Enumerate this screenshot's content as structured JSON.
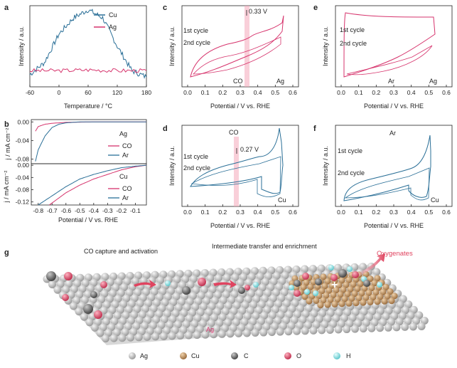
{
  "panels": {
    "a": {
      "label": "a",
      "xlabel": "Temperature / °C",
      "ylabel": "Intensity / a.u.",
      "xticks": [
        "-60",
        "0",
        "60",
        "120",
        "180"
      ],
      "legend": [
        {
          "name": "Cu",
          "color": "#2a6f97"
        },
        {
          "name": "Ag",
          "color": "#d6336c"
        }
      ]
    },
    "b": {
      "label": "b",
      "xlabel": "Potential / V vs. RHE",
      "xticks": [
        "-0.8",
        "-0.7",
        "-0.6",
        "-0.5",
        "-0.4",
        "-0.3",
        "-0.2",
        "-0.1"
      ],
      "top": {
        "ylabel": "j / mA cm⁻²",
        "yticks": [
          "0.00",
          "-0.04",
          "-0.08"
        ],
        "metal": "Ag",
        "legend": [
          {
            "name": "CO",
            "color": "#d6336c"
          },
          {
            "name": "Ar",
            "color": "#2a6f97"
          }
        ]
      },
      "bottom": {
        "ylabel": "j / mA cm⁻²",
        "yticks": [
          "0.00",
          "-0.04",
          "-0.08",
          "-0.12"
        ],
        "metal": "Cu",
        "legend": [
          {
            "name": "CO",
            "color": "#d6336c"
          },
          {
            "name": "Ar",
            "color": "#2a6f97"
          }
        ]
      }
    },
    "c": {
      "label": "c",
      "peak": "0.33 V",
      "c1": "1st cycle",
      "c2": "2nd cycle",
      "gas": "CO",
      "metal": "Ag",
      "xlabel": "Potential / V vs. RHE",
      "ylabel": "Intensity / a.u."
    },
    "d": {
      "label": "d",
      "peak": "0.27 V",
      "c1": "1st cycle",
      "c2": "2nd cycle",
      "gas": "CO",
      "metal": "Cu",
      "xlabel": "Potential / V vs. RHE",
      "ylabel": "Intensity / a.u."
    },
    "e": {
      "label": "e",
      "c1": "1st cycle",
      "c2": "2nd cycle",
      "gas": "Ar",
      "metal": "Ag",
      "xlabel": "Potential / V vs. RHE",
      "ylabel": "Intensity / a.u."
    },
    "f": {
      "label": "f",
      "c1": "1st cycle",
      "c2": "2nd cycle",
      "gas": "Ar",
      "metal": "Cu",
      "xlabel": "Potential / V vs. RHE",
      "ylabel": "Intensity / a.u."
    },
    "cv_xticks": [
      "0.0",
      "0.1",
      "0.2",
      "0.3",
      "0.4",
      "0.5",
      "0.6"
    ],
    "g": {
      "label": "g",
      "step1": "CO capture and activation",
      "step2": "Intermediate transfer and enrichment",
      "product": "Oxygenates",
      "surface": "Ag",
      "legend": [
        "Ag",
        "Cu",
        "C",
        "O",
        "H"
      ],
      "colors": {
        "Ag": "#c9c9c9",
        "Cu": "#c49a6c",
        "C": "#7a7a7a",
        "O": "#e05070",
        "H": "#8fdde0"
      }
    }
  },
  "chart_data": [
    {
      "type": "line",
      "panel": "a",
      "xlabel": "Temperature / °C",
      "ylabel": "Intensity / a.u.",
      "xlim": [
        -60,
        180
      ],
      "series": [
        {
          "name": "Cu",
          "x": [
            -60,
            -30,
            0,
            30,
            60,
            90,
            120,
            150,
            180
          ],
          "y": [
            0.15,
            0.3,
            0.65,
            0.85,
            0.95,
            0.85,
            0.5,
            0.2,
            0.12
          ]
        },
        {
          "name": "Ag",
          "x": [
            -60,
            0,
            60,
            120,
            180
          ],
          "y": [
            0.2,
            0.2,
            0.21,
            0.2,
            0.2
          ]
        }
      ]
    },
    {
      "type": "line",
      "panel": "b-top",
      "xlabel": "Potential / V vs. RHE",
      "ylabel": "j / mA cm⁻²",
      "xlim": [
        -0.85,
        -0.02
      ],
      "ylim": [
        -0.09,
        0.005
      ],
      "series": [
        {
          "name": "CO",
          "x": [
            -0.82,
            -0.8,
            -0.75,
            -0.7,
            -0.6,
            -0.4,
            -0.02
          ],
          "y": [
            -0.02,
            -0.01,
            -0.005,
            -0.003,
            -0.001,
            0,
            0
          ]
        },
        {
          "name": "Ar",
          "x": [
            -0.82,
            -0.8,
            -0.75,
            -0.7,
            -0.65,
            -0.6,
            -0.5,
            -0.02
          ],
          "y": [
            -0.085,
            -0.06,
            -0.03,
            -0.012,
            -0.005,
            -0.002,
            0,
            0
          ]
        }
      ]
    },
    {
      "type": "line",
      "panel": "b-bottom",
      "xlabel": "Potential / V vs. RHE",
      "ylabel": "j / mA cm⁻²",
      "xlim": [
        -0.85,
        -0.02
      ],
      "ylim": [
        -0.13,
        0.005
      ],
      "series": [
        {
          "name": "CO",
          "x": [
            -0.72,
            -0.6,
            -0.5,
            -0.4,
            -0.3,
            -0.2,
            -0.1,
            -0.02
          ],
          "y": [
            -0.13,
            -0.09,
            -0.065,
            -0.045,
            -0.03,
            -0.015,
            -0.005,
            0
          ]
        },
        {
          "name": "Ar",
          "x": [
            -0.8,
            -0.7,
            -0.6,
            -0.5,
            -0.4,
            -0.3,
            -0.2,
            -0.1,
            -0.02
          ],
          "y": [
            -0.13,
            -0.1,
            -0.07,
            -0.045,
            -0.03,
            -0.018,
            -0.008,
            -0.003,
            0
          ]
        }
      ]
    }
  ]
}
